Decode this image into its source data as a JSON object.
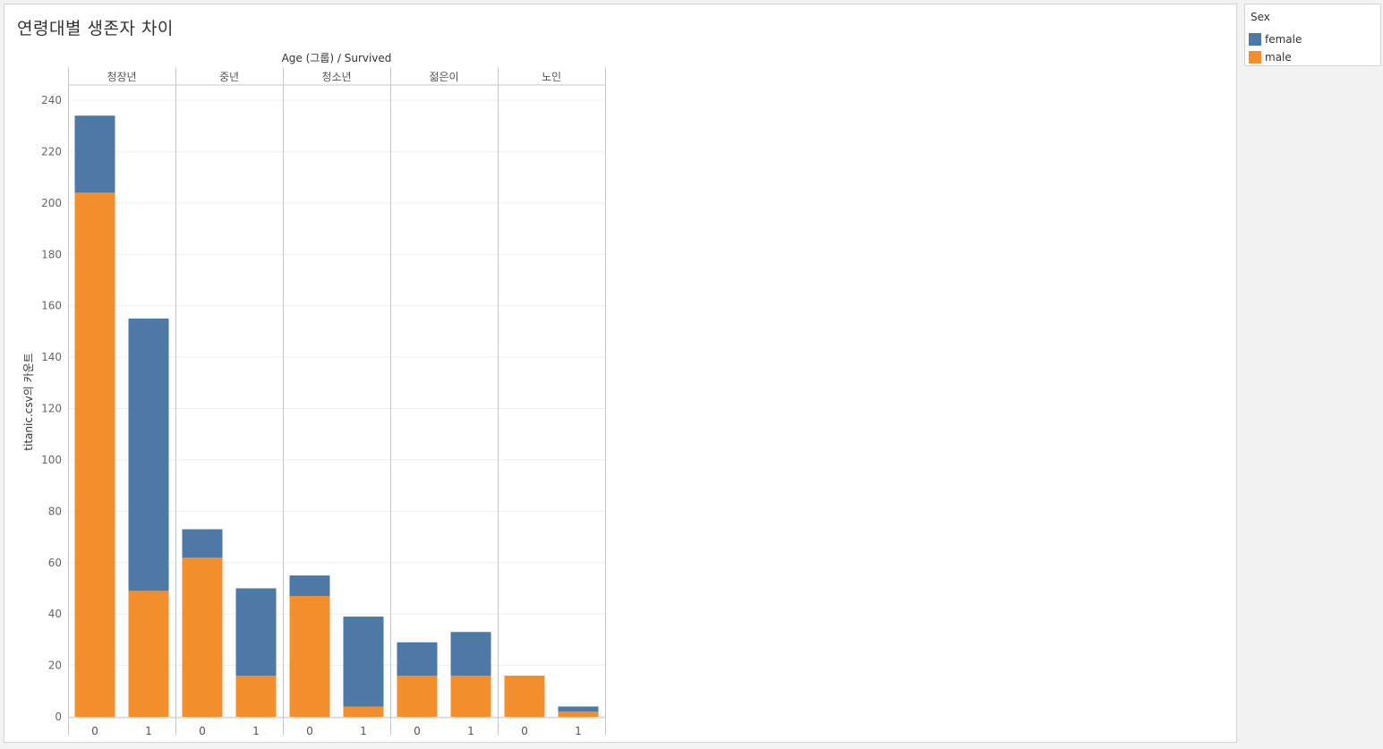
{
  "title": "연령대별 생존자 차이",
  "colors": {
    "female": "#4e79a7",
    "male": "#f28e2b"
  },
  "legend": {
    "title": "Sex",
    "items": [
      {
        "label": "female",
        "color": "#4e79a7"
      },
      {
        "label": "male",
        "color": "#f28e2b"
      }
    ]
  },
  "chart_data": {
    "type": "bar",
    "stacked": true,
    "title": "연령대별 생존자 차이",
    "column_header": "Age (그룹) / Survived",
    "ylabel": "titanic.csv의 카운트",
    "ylim": [
      0,
      240
    ],
    "yticks": [
      0,
      20,
      40,
      60,
      80,
      100,
      120,
      140,
      160,
      180,
      200,
      220,
      240
    ],
    "grid": true,
    "legend_position": "right",
    "groups": [
      "청장년",
      "중년",
      "청소년",
      "젊은이",
      "노인"
    ],
    "categories": [
      "0",
      "1"
    ],
    "series": [
      {
        "name": "male",
        "values": [
          [
            204,
            49
          ],
          [
            62,
            16
          ],
          [
            47,
            4
          ],
          [
            16,
            16
          ],
          [
            16,
            2
          ]
        ]
      },
      {
        "name": "female",
        "values": [
          [
            30,
            106
          ],
          [
            11,
            34
          ],
          [
            8,
            35
          ],
          [
            13,
            17
          ],
          [
            0,
            2
          ]
        ]
      }
    ]
  }
}
